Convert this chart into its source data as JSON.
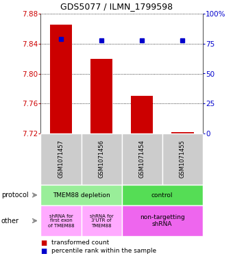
{
  "title": "GDS5077 / ILMN_1799598",
  "samples": [
    "GSM1071457",
    "GSM1071456",
    "GSM1071454",
    "GSM1071455"
  ],
  "transformed_counts": [
    7.865,
    7.82,
    7.77,
    7.722
  ],
  "percentile_ranks": [
    79,
    78,
    78,
    78
  ],
  "y_min": 7.72,
  "y_max": 7.88,
  "y_ticks": [
    7.72,
    7.76,
    7.8,
    7.84,
    7.88
  ],
  "right_ticks": [
    0,
    25,
    50,
    75,
    100
  ],
  "right_tick_labels": [
    "0",
    "25",
    "50",
    "75",
    "100%"
  ],
  "bar_color": "#cc0000",
  "dot_color": "#0000cc",
  "protocol_labels": [
    "TMEM88 depletion",
    "control"
  ],
  "protocol_color_left": "#99ee99",
  "protocol_color_right": "#55dd55",
  "other_label_left1": "shRNA for\nfirst exon\nof TMEM88",
  "other_label_left2": "shRNA for\n3'UTR of\nTMEM88",
  "other_label_right": "non-targetting\nshRNA",
  "other_color_left": "#ffaaff",
  "other_color_right": "#ee66ee",
  "tick_color_left": "#cc0000",
  "tick_color_right": "#0000cc",
  "legend_red_label": "transformed count",
  "legend_blue_label": "percentile rank within the sample"
}
